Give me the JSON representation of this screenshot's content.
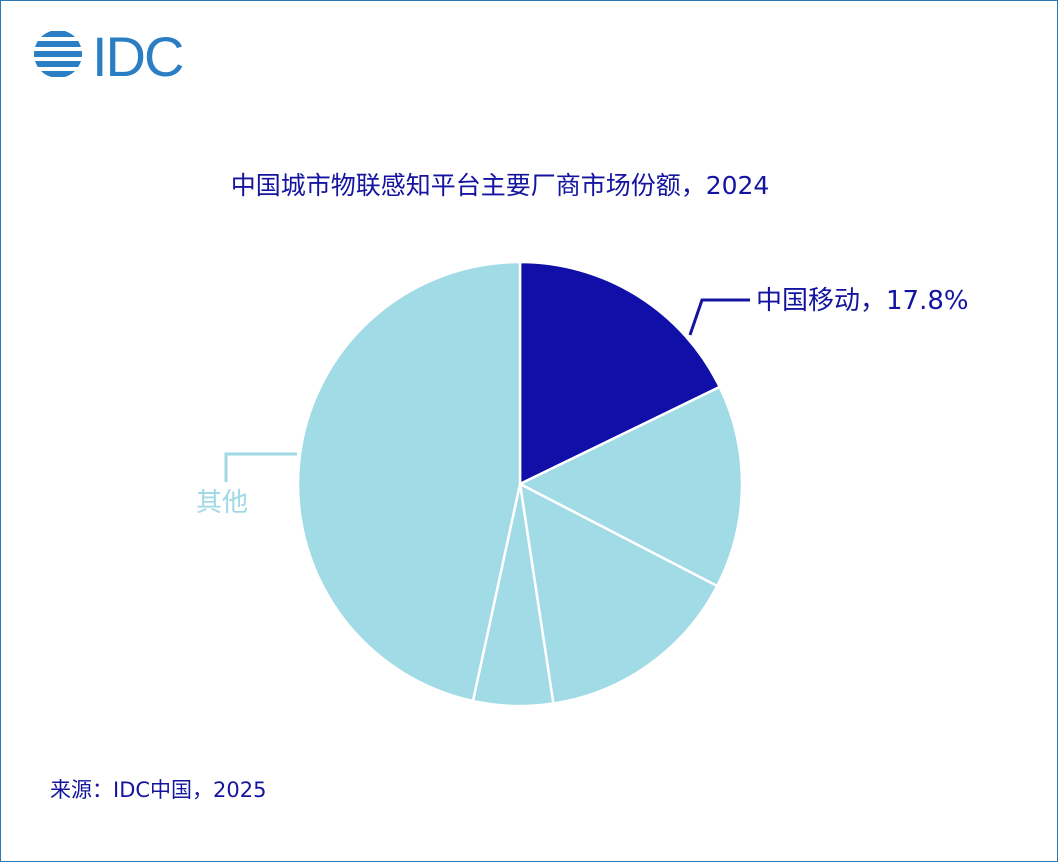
{
  "logo": {
    "text": "IDC",
    "color": "#2a7fc4"
  },
  "source": "来源：IDC中国，2025",
  "chart_data": {
    "type": "pie",
    "title": "中国城市物联感知平台主要厂商市场份额，2024",
    "start": "top",
    "direction": "clockwise",
    "slices": [
      {
        "label": "中国移动",
        "value": 17.8,
        "value_label": "17.8%",
        "color": "#1010a8"
      },
      {
        "label": "",
        "value": 14.8,
        "color": "#a1dbe6"
      },
      {
        "label": "",
        "value": 15.0,
        "color": "#a1dbe6"
      },
      {
        "label": "",
        "value": 5.8,
        "color": "#a1dbe6"
      },
      {
        "label": "其他",
        "value": 46.6,
        "color": "#a1dbe6"
      }
    ],
    "labels": {
      "primary": "中国移动，17.8%",
      "other": "其他"
    },
    "label_colors": {
      "primary": "#1414a0",
      "other": "#9fd9e6"
    }
  }
}
